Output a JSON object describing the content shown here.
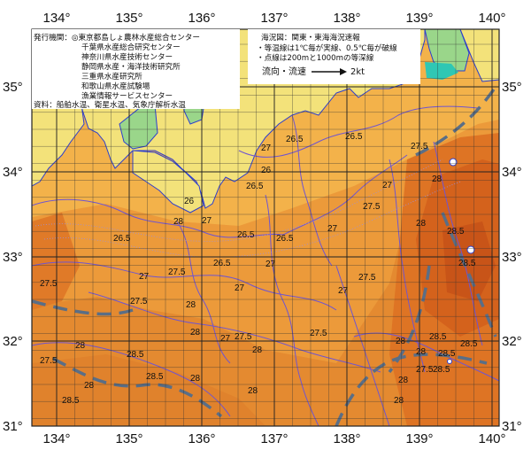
{
  "lon_ticks": [
    "134°",
    "135°",
    "136°",
    "137°",
    "138°",
    "139°",
    "140°"
  ],
  "lat_ticks": [
    "35°",
    "34°",
    "33°",
    "32°",
    "31°"
  ],
  "credits": [
    "発行機関：◎東京都島しょ農林水産総合センター",
    "千葉県水産総合研究センター",
    "神奈川県水産技術センター",
    "静岡県水産・海洋技術研究所",
    "三重県水産研究所",
    "和歌山県水産試験場",
    "漁業情報サービスセンター",
    "資料：船舶水温、衛星水温、気象庁解析水温"
  ],
  "legend_lines": [
    "海況図：関東・東海海況速報",
    "・等温線は1℃毎が実線、0.5℃毎が破線",
    "・点線は200mと1000mの等深線"
  ],
  "current_label": "流向・流速",
  "current_speed": "2kt",
  "isotherm_labels": [
    "26.5",
    "27.5",
    "27",
    "26",
    "26.5",
    "27",
    "27.5",
    "28",
    "26.5",
    "26",
    "27",
    "26.5",
    "26.5",
    "27",
    "26.5",
    "28",
    "28.5",
    "28",
    "27",
    "26.5",
    "27.5",
    "27",
    "27.5",
    "27",
    "27.5",
    "28.5",
    "27",
    "27.5",
    "28",
    "28",
    "27.5",
    "28",
    "27.5",
    "27",
    "28",
    "28.5",
    "28",
    "28.5",
    "28",
    "28",
    "28.5",
    "28.5",
    "28",
    "27.5",
    "28.5",
    "28",
    "27.5",
    "28",
    "28.5",
    "28.5",
    "28"
  ],
  "colors": {
    "land_yellow": "#f3e27a",
    "land_green": "#9ad68a",
    "sea_light": "#f3b24a",
    "sea_mid": "#ec9a3a",
    "sea_deep": "#e07a28",
    "sea_hot": "#d4621c",
    "isotherm": "#6f55d0",
    "current": "#5a6e86",
    "grid": "#222222"
  }
}
